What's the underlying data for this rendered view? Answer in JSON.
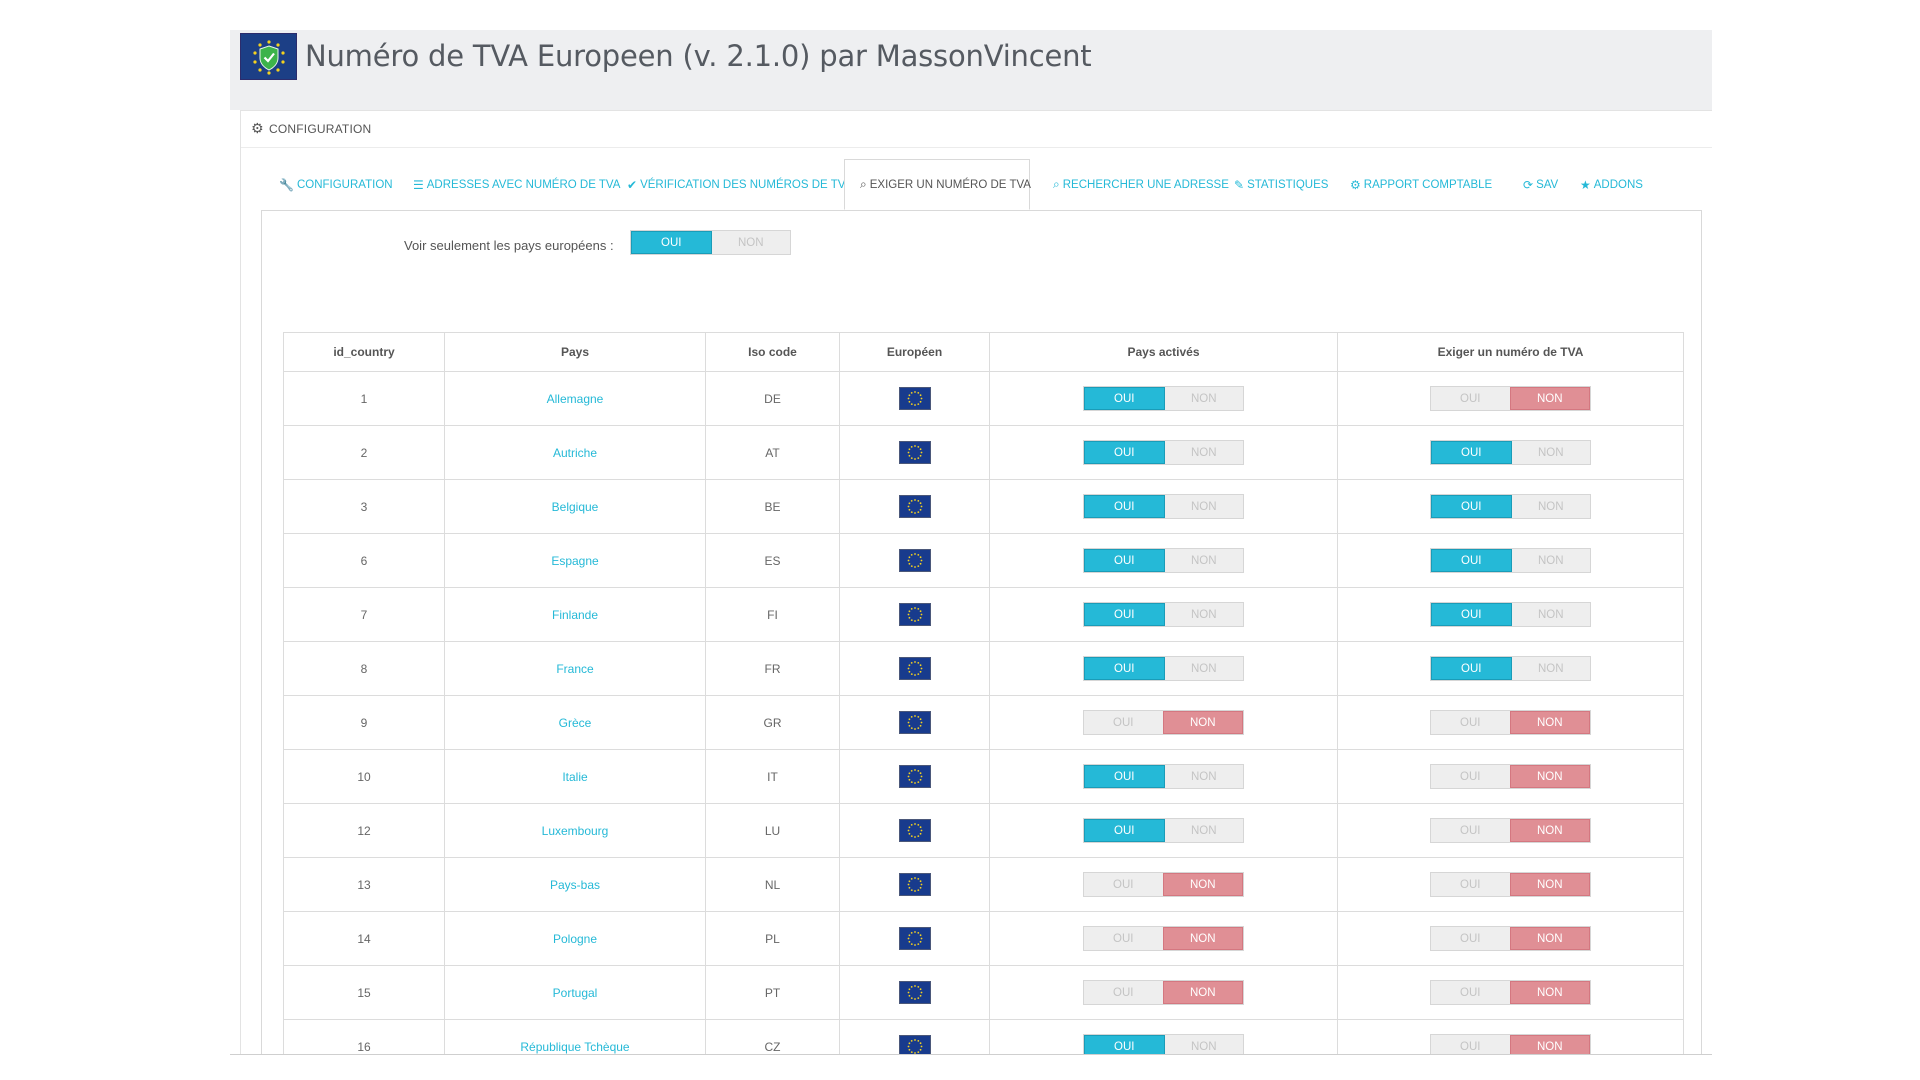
{
  "header": {
    "title": "Numéro de TVA Europeen (v. 2.1.0) par MassonVincent",
    "logo_icon": "shield-check-icon"
  },
  "panel": {
    "title": "CONFIGURATION",
    "icon": "gears-icon"
  },
  "tabs": [
    {
      "label": "CONFIGURATION",
      "icon": "wrench-icon",
      "active": false
    },
    {
      "label": "ADRESSES AVEC NUMÉRO DE TVA",
      "icon": "database-icon",
      "active": false
    },
    {
      "label": "VÉRIFICATION DES NUMÉROS DE TVA",
      "icon": "check-icon",
      "active": false
    },
    {
      "label": "EXIGER UN NUMÉRO DE TVA",
      "icon": "search-icon",
      "active": true
    },
    {
      "label": "RECHERCHER UNE ADRESSE",
      "icon": "search-icon",
      "active": false
    },
    {
      "label": "STATISTIQUES",
      "icon": "pencil-icon",
      "active": false
    },
    {
      "label": "RAPPORT COMPTABLE",
      "icon": "gears-icon",
      "active": false
    },
    {
      "label": "SAV",
      "icon": "refresh-icon",
      "active": false
    },
    {
      "label": "ADDONS",
      "icon": "star-icon",
      "active": false
    }
  ],
  "filter": {
    "label": "Voir seulement les pays européens :",
    "yes": "OUI",
    "no": "NON",
    "value": true
  },
  "switch_labels": {
    "yes": "OUI",
    "no": "NON"
  },
  "colors": {
    "accent": "#25b9d7",
    "no_active": "#e08f95"
  },
  "table": {
    "columns": [
      "id_country",
      "Pays",
      "Iso code",
      "Européen",
      "Pays activés",
      "Exiger un numéro de TVA"
    ],
    "rows": [
      {
        "id": "1",
        "pays": "Allemagne",
        "iso": "DE",
        "actif": true,
        "exiger": false
      },
      {
        "id": "2",
        "pays": "Autriche",
        "iso": "AT",
        "actif": true,
        "exiger": true
      },
      {
        "id": "3",
        "pays": "Belgique",
        "iso": "BE",
        "actif": true,
        "exiger": true
      },
      {
        "id": "6",
        "pays": "Espagne",
        "iso": "ES",
        "actif": true,
        "exiger": true
      },
      {
        "id": "7",
        "pays": "Finlande",
        "iso": "FI",
        "actif": true,
        "exiger": true
      },
      {
        "id": "8",
        "pays": "France",
        "iso": "FR",
        "actif": true,
        "exiger": true
      },
      {
        "id": "9",
        "pays": "Grèce",
        "iso": "GR",
        "actif": false,
        "exiger": false
      },
      {
        "id": "10",
        "pays": "Italie",
        "iso": "IT",
        "actif": true,
        "exiger": false
      },
      {
        "id": "12",
        "pays": "Luxembourg",
        "iso": "LU",
        "actif": true,
        "exiger": false
      },
      {
        "id": "13",
        "pays": "Pays-bas",
        "iso": "NL",
        "actif": false,
        "exiger": false
      },
      {
        "id": "14",
        "pays": "Pologne",
        "iso": "PL",
        "actif": false,
        "exiger": false
      },
      {
        "id": "15",
        "pays": "Portugal",
        "iso": "PT",
        "actif": false,
        "exiger": false
      },
      {
        "id": "16",
        "pays": "République Tchèque",
        "iso": "CZ",
        "actif": true,
        "exiger": false
      }
    ]
  }
}
